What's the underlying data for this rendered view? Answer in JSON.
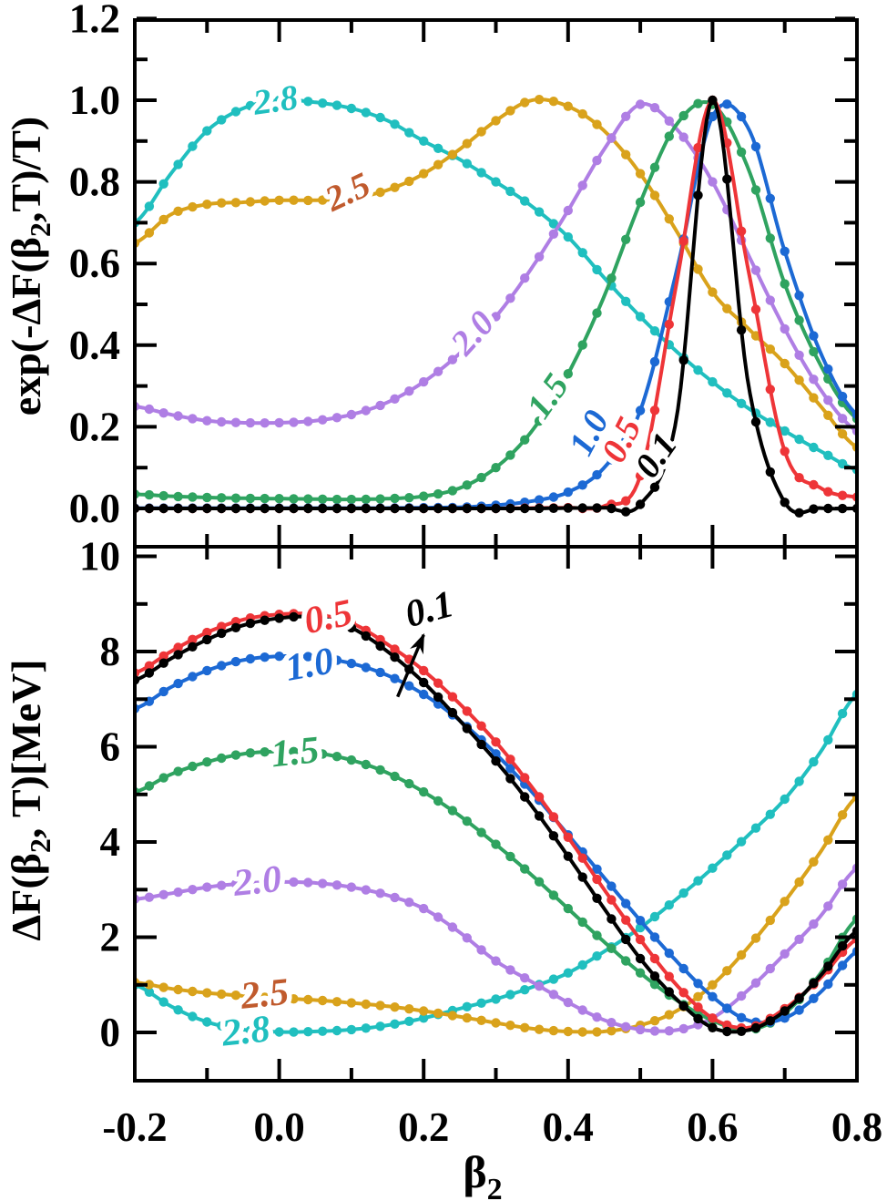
{
  "figure": {
    "background": "#ffffff",
    "frame_color": "#000000",
    "x_axis": {
      "title": {
        "base": "β",
        "sub": "2"
      },
      "range": [
        -0.2,
        0.8
      ],
      "major_ticks": [
        -0.2,
        0.0,
        0.2,
        0.4,
        0.6,
        0.8
      ],
      "major_tick_labels": [
        "-0.2",
        "0.0",
        "0.2",
        "0.4",
        "0.6",
        "0.8"
      ],
      "minor_ticks": [
        -0.1,
        0.1,
        0.3,
        0.5,
        0.7
      ]
    },
    "top_panel": {
      "y_title": {
        "prefix": "exp(-ΔF(β",
        "sub": "2",
        "suffix": ",T)/T)"
      },
      "y_major_ticks": [
        0.0,
        0.2,
        0.4,
        0.6,
        0.8,
        1.0,
        1.2
      ],
      "y_major_tick_labels": [
        "0.0",
        "0.2",
        "0.4",
        "0.6",
        "0.8",
        "1.0",
        "1.2"
      ],
      "y_minor_ticks": [
        0.1,
        0.3,
        0.5,
        0.7,
        0.9,
        1.1
      ]
    },
    "bottom_panel": {
      "y_title": {
        "prefix": "ΔF(β",
        "sub": "2",
        "suffix": ", T)[MeV]"
      },
      "y_unit": "MeV",
      "y_major_ticks": [
        0,
        2,
        4,
        6,
        8,
        10
      ],
      "y_major_tick_labels": [
        "0",
        "2",
        "4",
        "6",
        "8",
        "10"
      ],
      "y_minor_ticks": [
        1,
        3,
        5,
        7,
        9
      ]
    },
    "temperatures": [
      "0.1",
      "0.5",
      "1.0",
      "1.5",
      "2.0",
      "2.5",
      "2.8"
    ],
    "palette": {
      "T0.1": "#000000",
      "T0.5": "#ee3538",
      "T1.0": "#1c69d4",
      "T1.5": "#2fa360",
      "T2.0": "#af7ee4",
      "T2.5": "#d9a21b",
      "T2.8": "#20bfbf",
      "label_2_5": "#c05a2d"
    }
  },
  "chart_data": [
    {
      "panel": "top",
      "type": "line",
      "title": "",
      "xlabel": "β2",
      "ylabel": "exp(-ΔF(β2,T)/T)",
      "xlim": [
        -0.2,
        0.8
      ],
      "ylim": [
        0,
        1.2
      ],
      "grid": false,
      "legend_position": "inline-curve-labels",
      "markers": true,
      "marker_interval": 0.02,
      "x": [
        -0.2,
        -0.15,
        -0.1,
        -0.05,
        0,
        0.05,
        0.1,
        0.15,
        0.2,
        0.25,
        0.3,
        0.35,
        0.4,
        0.45,
        0.5,
        0.55,
        0.6,
        0.65,
        0.7,
        0.75,
        0.8
      ],
      "series": [
        {
          "name": "0.1",
          "color": "#000000",
          "values": [
            0,
            0,
            0,
            0,
            0,
            0,
            0,
            0,
            0,
            0,
            0,
            0,
            0.001,
            0.002,
            0.01,
            0.22,
            1.0,
            0.3,
            0.015,
            0.001,
            0
          ]
        },
        {
          "name": "0.5",
          "color": "#ee3538",
          "values": [
            0,
            0,
            0,
            0,
            0,
            0,
            0,
            0,
            0,
            0,
            0,
            0.001,
            0.002,
            0.006,
            0.08,
            0.55,
            1.0,
            0.58,
            0.14,
            0.05,
            0.028
          ]
        },
        {
          "name": "1.0",
          "color": "#1c69d4",
          "values": [
            0.001,
            0.001,
            0.001,
            0.001,
            0.001,
            0.001,
            0.001,
            0.001,
            0.002,
            0.003,
            0.008,
            0.018,
            0.04,
            0.1,
            0.24,
            0.58,
            0.96,
            0.93,
            0.63,
            0.38,
            0.23
          ]
        },
        {
          "name": "1.5",
          "color": "#2fa360",
          "values": [
            0.035,
            0.03,
            0.027,
            0.025,
            0.024,
            0.023,
            0.022,
            0.024,
            0.03,
            0.05,
            0.1,
            0.19,
            0.33,
            0.52,
            0.75,
            0.94,
            0.99,
            0.83,
            0.55,
            0.35,
            0.22
          ]
        },
        {
          "name": "2.0",
          "color": "#af7ee4",
          "values": [
            0.25,
            0.23,
            0.215,
            0.21,
            0.21,
            0.215,
            0.23,
            0.26,
            0.31,
            0.38,
            0.47,
            0.59,
            0.73,
            0.88,
            0.99,
            0.93,
            0.8,
            0.62,
            0.44,
            0.29,
            0.19
          ]
        },
        {
          "name": "2.5",
          "color": "#d9a21b",
          "values": [
            0.65,
            0.72,
            0.745,
            0.75,
            0.755,
            0.755,
            0.76,
            0.78,
            0.82,
            0.88,
            0.95,
            1.0,
            0.985,
            0.925,
            0.82,
            0.68,
            0.53,
            0.44,
            0.355,
            0.25,
            0.15
          ]
        },
        {
          "name": "2.8",
          "color": "#20bfbf",
          "values": [
            0.7,
            0.82,
            0.925,
            0.98,
            1.0,
            0.995,
            0.98,
            0.95,
            0.9,
            0.855,
            0.8,
            0.74,
            0.665,
            0.565,
            0.47,
            0.385,
            0.31,
            0.245,
            0.19,
            0.14,
            0.095
          ]
        }
      ],
      "labels": [
        {
          "text": "2.8",
          "color": "#20bfbf",
          "beta": -0.005,
          "value": 1.0,
          "rot": -8
        },
        {
          "text": "2.5",
          "color": "#c05a2d",
          "beta": 0.095,
          "value": 0.775,
          "rot": -25
        },
        {
          "text": "2.0",
          "color": "#af7ee4",
          "beta": 0.268,
          "value": 0.43,
          "rot": -48
        },
        {
          "text": "1.5",
          "color": "#2fa360",
          "beta": 0.372,
          "value": 0.275,
          "rot": -55
        },
        {
          "text": "1.0",
          "color": "#1c69d4",
          "beta": 0.429,
          "value": 0.185,
          "rot": -62
        },
        {
          "text": "0.5",
          "color": "#ee3538",
          "beta": 0.474,
          "value": 0.168,
          "rot": -63
        },
        {
          "text": "0.1",
          "color": "#000000",
          "beta": 0.522,
          "value": 0.13,
          "rot": -55
        }
      ]
    },
    {
      "panel": "bottom",
      "type": "line",
      "title": "",
      "xlabel": "β2",
      "ylabel": "ΔF(β2, T)[MeV]",
      "xlim": [
        -0.2,
        0.8
      ],
      "ylim": [
        0,
        10
      ],
      "grid": false,
      "legend_position": "inline-curve-labels",
      "markers": true,
      "marker_interval": 0.02,
      "x": [
        -0.2,
        -0.15,
        -0.1,
        -0.05,
        0,
        0.05,
        0.1,
        0.15,
        0.2,
        0.25,
        0.3,
        0.35,
        0.4,
        0.45,
        0.5,
        0.55,
        0.6,
        0.65,
        0.7,
        0.75,
        0.8
      ],
      "series": [
        {
          "name": "0.1",
          "color": "#000000",
          "values": [
            7.4,
            7.85,
            8.25,
            8.55,
            8.7,
            8.72,
            8.5,
            8.0,
            7.35,
            6.55,
            5.7,
            4.75,
            3.7,
            2.6,
            1.55,
            0.7,
            0.1,
            0.05,
            0.45,
            1.2,
            2.13
          ]
        },
        {
          "name": "0.5",
          "color": "#ee3538",
          "values": [
            7.55,
            8.0,
            8.4,
            8.67,
            8.78,
            8.78,
            8.6,
            8.15,
            7.6,
            6.9,
            6.1,
            5.15,
            4.1,
            3.0,
            1.95,
            1.0,
            0.3,
            0.1,
            0.5,
            1.15,
            1.96
          ]
        },
        {
          "name": "1.0",
          "color": "#1c69d4",
          "values": [
            6.8,
            7.25,
            7.6,
            7.82,
            7.9,
            7.88,
            7.75,
            7.5,
            7.1,
            6.55,
            5.85,
            5.05,
            4.15,
            3.25,
            2.35,
            1.5,
            0.75,
            0.25,
            0.3,
            0.85,
            1.7
          ]
        },
        {
          "name": "1.5",
          "color": "#2fa360",
          "values": [
            5.05,
            5.42,
            5.68,
            5.85,
            5.9,
            5.87,
            5.72,
            5.45,
            5.05,
            4.55,
            3.95,
            3.3,
            2.6,
            1.9,
            1.25,
            0.68,
            0.25,
            0.05,
            0.4,
            1.25,
            2.38
          ]
        },
        {
          "name": "2.0",
          "color": "#af7ee4",
          "values": [
            2.8,
            2.92,
            3.05,
            3.13,
            3.16,
            3.14,
            3.05,
            2.88,
            2.6,
            2.1,
            1.5,
            1.06,
            0.63,
            0.26,
            0.06,
            0.05,
            0.3,
            0.9,
            1.65,
            2.45,
            3.45
          ]
        },
        {
          "name": "2.5",
          "color": "#d9a21b",
          "values": [
            1.05,
            0.92,
            0.83,
            0.77,
            0.72,
            0.68,
            0.62,
            0.55,
            0.45,
            0.33,
            0.2,
            0.08,
            0.02,
            0.02,
            0.15,
            0.45,
            1.0,
            1.8,
            2.75,
            3.8,
            4.95
          ]
        },
        {
          "name": "2.8",
          "color": "#20bfbf",
          "values": [
            1.0,
            0.55,
            0.22,
            0.06,
            0.01,
            0.02,
            0.06,
            0.15,
            0.3,
            0.5,
            0.7,
            0.95,
            1.25,
            1.7,
            2.2,
            2.8,
            3.45,
            4.15,
            4.9,
            5.9,
            7.1
          ]
        }
      ],
      "labels": [
        {
          "text": "0.5",
          "color": "#ee3538",
          "beta": 0.068,
          "value": 8.72,
          "rot": -12
        },
        {
          "text": "0.1",
          "color": "#000000",
          "beta": 0.208,
          "value": 8.88,
          "rot": -15
        },
        {
          "text": "1.0",
          "color": "#1c69d4",
          "beta": 0.042,
          "value": 7.72,
          "rot": -10
        },
        {
          "text": "1.5",
          "color": "#2fa360",
          "beta": 0.022,
          "value": 5.88,
          "rot": -6
        },
        {
          "text": "2.0",
          "color": "#af7ee4",
          "beta": -0.03,
          "value": 3.17,
          "rot": -6
        },
        {
          "text": "2.5",
          "color": "#c05a2d",
          "beta": -0.02,
          "value": 0.8,
          "rot": -6
        },
        {
          "text": "2.8",
          "color": "#20bfbf",
          "beta": -0.046,
          "value": 0.02,
          "rot": -6
        }
      ],
      "arrow": {
        "from_beta": 0.164,
        "from_value": 7.05,
        "to_beta": 0.2,
        "to_value": 8.35,
        "points_to_label": "0.1"
      }
    }
  ]
}
